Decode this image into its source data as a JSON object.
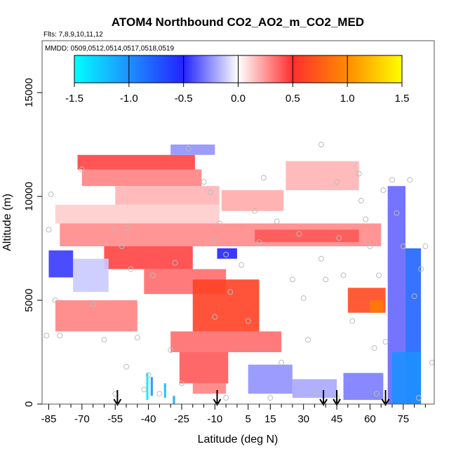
{
  "chart_data": {
    "type": "heatmap",
    "title": "ATOM4 Northbound CO2_AO2_m_CO2_MED",
    "flights_label": "Flts: 7,8,9,10,11,12",
    "dates_label": "MMDD: 0509,0512,0514,0517,0518,0519",
    "xlabel": "Latitude (deg N)",
    "ylabel": "Altitude (m)",
    "xlim": [
      -88,
      89
    ],
    "ylim": [
      0,
      17500
    ],
    "xticks": [
      -85,
      -70,
      -55,
      -40,
      -25,
      -10,
      5,
      15,
      30,
      45,
      60,
      75
    ],
    "xtick_labels": [
      "-85",
      "-70",
      "-55",
      "-40",
      "-25",
      "-10",
      "5",
      "15",
      "30",
      "45",
      "60",
      "75"
    ],
    "x_minor_ticks": [
      -80,
      -75,
      -65,
      -60,
      -50,
      -45,
      -35,
      -30,
      -20,
      -15,
      -5,
      0,
      10,
      20,
      25,
      35,
      40,
      50,
      55,
      65,
      70,
      80,
      85
    ],
    "yticks": [
      0,
      5000,
      10000,
      15000
    ],
    "ytick_labels": [
      "0",
      "5000",
      "10000",
      "15000"
    ],
    "colorbar": {
      "range": [
        -1.5,
        1.5
      ],
      "ticks": [
        -1.5,
        -1.0,
        -0.5,
        0.0,
        0.5,
        1.0,
        1.5
      ],
      "tick_labels": [
        "-1.5",
        "-1.0",
        "-0.5",
        "0.0",
        "0.5",
        "1.0",
        "1.5"
      ],
      "stops": [
        {
          "v": -1.5,
          "color": "#00ffff"
        },
        {
          "v": -1.0,
          "color": "#1e90ff"
        },
        {
          "v": -0.5,
          "color": "#2323ff"
        },
        {
          "v": 0.0,
          "color": "#ffffff"
        },
        {
          "v": 0.5,
          "color": "#ff2e2e"
        },
        {
          "v": 1.0,
          "color": "#ff8c00"
        },
        {
          "v": 1.5,
          "color": "#ffff00"
        }
      ]
    },
    "arrow_latitudes": [
      -54,
      -9,
      39,
      45,
      67
    ],
    "regions": [
      {
        "lat": [
          -72,
          -19
        ],
        "alt": [
          11300,
          12000
        ],
        "value": 0.45
      },
      {
        "lat": [
          -70,
          -16
        ],
        "alt": [
          10500,
          11300
        ],
        "value": 0.3
      },
      {
        "lat": [
          -55,
          -8
        ],
        "alt": [
          9600,
          10500
        ],
        "value": 0.18
      },
      {
        "lat": [
          -82,
          -8
        ],
        "alt": [
          8700,
          9600
        ],
        "value": 0.12
      },
      {
        "lat": [
          -80,
          65
        ],
        "alt": [
          7600,
          8700
        ],
        "value": 0.28
      },
      {
        "lat": [
          -60,
          -20
        ],
        "alt": [
          6500,
          7600
        ],
        "value": 0.45
      },
      {
        "lat": [
          -85,
          -74
        ],
        "alt": [
          6100,
          7400
        ],
        "value": -0.45
      },
      {
        "lat": [
          -74,
          -58
        ],
        "alt": [
          5400,
          7000
        ],
        "value": -0.12
      },
      {
        "lat": [
          -42,
          -5
        ],
        "alt": [
          5300,
          6500
        ],
        "value": 0.35
      },
      {
        "lat": [
          -82,
          -45
        ],
        "alt": [
          3500,
          5000
        ],
        "value": 0.3
      },
      {
        "lat": [
          -20,
          10
        ],
        "alt": [
          3500,
          6000
        ],
        "value": 0.6
      },
      {
        "lat": [
          -30,
          20
        ],
        "alt": [
          2500,
          3500
        ],
        "value": 0.35
      },
      {
        "lat": [
          -26,
          -4
        ],
        "alt": [
          1000,
          2500
        ],
        "value": 0.4
      },
      {
        "lat": [
          -20,
          -5
        ],
        "alt": [
          500,
          1000
        ],
        "value": 0.3
      },
      {
        "lat": [
          -7,
          21
        ],
        "alt": [
          9300,
          10300
        ],
        "value": 0.2
      },
      {
        "lat": [
          22,
          55
        ],
        "alt": [
          10300,
          11700
        ],
        "value": 0.18
      },
      {
        "lat": [
          8,
          55
        ],
        "alt": [
          7800,
          8400
        ],
        "value": 0.4
      },
      {
        "lat": [
          50,
          67
        ],
        "alt": [
          4400,
          5600
        ],
        "value": 0.65
      },
      {
        "lat": [
          60,
          66
        ],
        "alt": [
          4400,
          5000
        ],
        "value": 0.9
      },
      {
        "lat": [
          -9,
          0
        ],
        "alt": [
          7000,
          7500
        ],
        "value": -0.5
      },
      {
        "lat": [
          -30,
          -10
        ],
        "alt": [
          12000,
          12500
        ],
        "value": -0.25
      },
      {
        "lat": [
          5,
          25
        ],
        "alt": [
          500,
          1900
        ],
        "value": -0.25
      },
      {
        "lat": [
          25,
          45
        ],
        "alt": [
          300,
          1200
        ],
        "value": -0.2
      },
      {
        "lat": [
          48,
          66
        ],
        "alt": [
          200,
          1500
        ],
        "value": -0.3
      },
      {
        "lat": [
          68,
          76
        ],
        "alt": [
          0,
          10500
        ],
        "value": -0.35
      },
      {
        "lat": [
          76,
          83
        ],
        "alt": [
          0,
          7500
        ],
        "value": -0.8
      },
      {
        "lat": [
          70,
          83
        ],
        "alt": [
          0,
          2500
        ],
        "value": -1.0
      },
      {
        "lat": [
          -41,
          -40
        ],
        "alt": [
          200,
          1500
        ],
        "value": -1.4
      },
      {
        "lat": [
          -39,
          -38
        ],
        "alt": [
          400,
          1300
        ],
        "value": -1.0
      },
      {
        "lat": [
          -33,
          -32
        ],
        "alt": [
          300,
          1000
        ],
        "value": -1.2
      },
      {
        "lat": [
          -29,
          -28
        ],
        "alt": [
          0,
          400
        ],
        "value": -1.1
      }
    ],
    "sample_points": [
      [
        -84,
        10100
      ],
      [
        -86,
        3300
      ],
      [
        -80,
        3300
      ],
      [
        -82,
        5000
      ],
      [
        -85,
        8400
      ],
      [
        -70,
        11300
      ],
      [
        -55,
        8400
      ],
      [
        -60,
        3100
      ],
      [
        -50,
        8500
      ],
      [
        -52,
        7600
      ],
      [
        -48,
        6500
      ],
      [
        -38,
        6200
      ],
      [
        -45,
        3200
      ],
      [
        -55,
        500
      ],
      [
        -50,
        1800
      ],
      [
        -40,
        1400
      ],
      [
        -42,
        700
      ],
      [
        -35,
        500
      ],
      [
        -30,
        2600
      ],
      [
        -28,
        6800
      ],
      [
        -22,
        12300
      ],
      [
        -25,
        1000
      ],
      [
        -15,
        10700
      ],
      [
        -12,
        10200
      ],
      [
        -10,
        7900
      ],
      [
        -8,
        8700
      ],
      [
        -5,
        7200
      ],
      [
        -3,
        5400
      ],
      [
        2,
        6700
      ],
      [
        5,
        4000
      ],
      [
        8,
        9300
      ],
      [
        10,
        7800
      ],
      [
        12,
        10900
      ],
      [
        18,
        8800
      ],
      [
        15,
        300
      ],
      [
        20,
        2000
      ],
      [
        25,
        6000
      ],
      [
        28,
        8200
      ],
      [
        32,
        3100
      ],
      [
        35,
        500
      ],
      [
        38,
        12500
      ],
      [
        38,
        7000
      ],
      [
        40,
        6000
      ],
      [
        45,
        10700
      ],
      [
        46,
        8000
      ],
      [
        48,
        6200
      ],
      [
        52,
        4000
      ],
      [
        55,
        11100
      ],
      [
        56,
        9800
      ],
      [
        58,
        8900
      ],
      [
        60,
        7600
      ],
      [
        62,
        2700
      ],
      [
        64,
        6200
      ],
      [
        66,
        10300
      ],
      [
        67,
        3000
      ],
      [
        70,
        10800
      ],
      [
        72,
        9200
      ],
      [
        75,
        7600
      ],
      [
        78,
        10800
      ],
      [
        83,
        6500
      ],
      [
        85,
        7600
      ],
      [
        80,
        5200
      ],
      [
        82,
        300
      ],
      [
        88,
        2000
      ],
      [
        63,
        500
      ],
      [
        45,
        300
      ],
      [
        30,
        5100
      ],
      [
        -10,
        4200
      ],
      [
        -65,
        4800
      ],
      [
        -5,
        300
      ]
    ]
  }
}
